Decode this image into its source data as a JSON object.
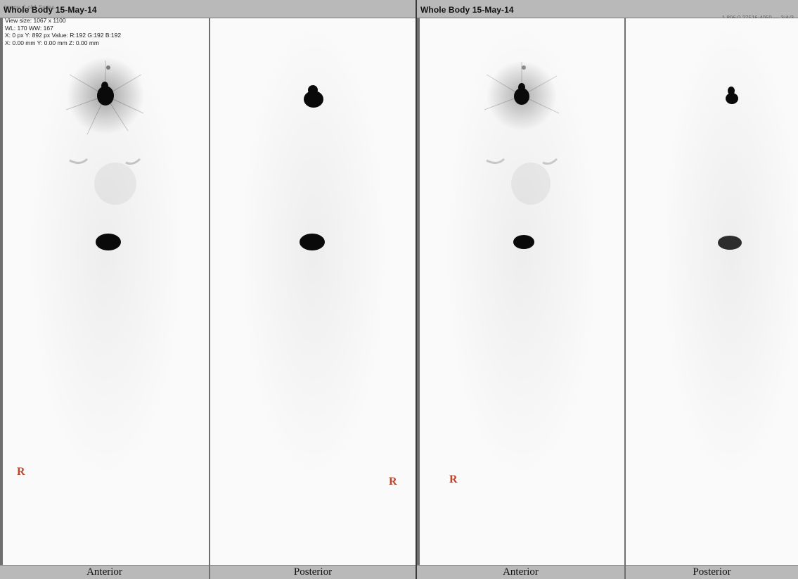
{
  "viewers": [
    {
      "title": "Whole Body 15-May-14",
      "overlay": {
        "ghost_text": "Image: 1 of 1 Series",
        "view_size": "View size: 1067 x 1100",
        "window": "WL: 170 WW: 167",
        "pixel": "X: 0 px Y: 892 px Value: R:192 G:192 B:192",
        "position": "X: 0.00 mm Y: 0.00 mm Z: 0.00 mm"
      },
      "panels": [
        {
          "label": "Anterior",
          "marker": "R"
        },
        {
          "label": "Posterior",
          "marker": "R"
        }
      ]
    },
    {
      "title": "Whole Body 15-May-14",
      "overlay": {
        "top_right": "1.806.0.27516.4050 — 3/A/3"
      },
      "panels": [
        {
          "label": "Anterior",
          "marker": "R"
        },
        {
          "label": "Posterior",
          "marker": ""
        }
      ]
    }
  ],
  "colors": {
    "chrome": "#b9b9b9",
    "panel_bg": "#fafafa",
    "marker": "#c0442b",
    "uptake": "#0a0a0a"
  }
}
